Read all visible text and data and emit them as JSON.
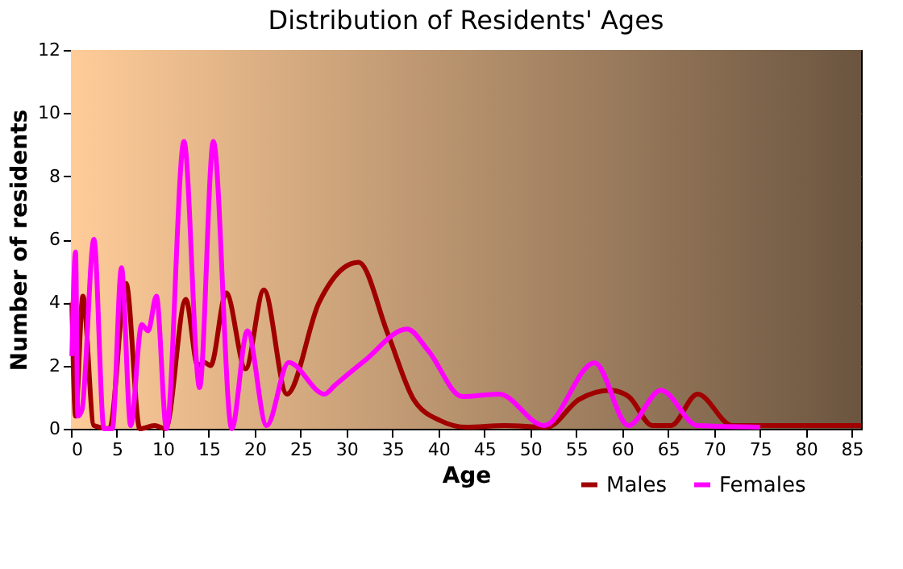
{
  "chart_data": {
    "type": "line",
    "title": "Distribution of Residents' Ages",
    "xlabel": "Age",
    "ylabel": "Number of residents",
    "xlim": [
      0,
      86
    ],
    "xticks": [
      0,
      5,
      10,
      15,
      20,
      25,
      30,
      35,
      40,
      45,
      50,
      55,
      60,
      65,
      70,
      75,
      80,
      85
    ],
    "ylim": [
      0,
      12
    ],
    "yticks": [
      0,
      2,
      4,
      6,
      8,
      10,
      12
    ],
    "grid": true,
    "legend": "bottom right",
    "marker": "none",
    "line_style": "solid",
    "series": [
      {
        "name": "Males",
        "color": "#a00000",
        "x": [
          0.1,
          0.5,
          1.3,
          2.5,
          4.2,
          6,
          7.5,
          9.1,
          10.3,
          12.5,
          13.8,
          14.5,
          15.2,
          16.9,
          19,
          21,
          23.5,
          27,
          29.7,
          31.3,
          34.5,
          37.3,
          40.2,
          43.1,
          47.2,
          51.8,
          55.3,
          58.7,
          60.7,
          63.3,
          65.3,
          68.2,
          72,
          80,
          86
        ],
        "values": [
          4.0,
          0.4,
          4.2,
          0.1,
          0,
          4.6,
          0,
          0.1,
          0,
          4.1,
          2,
          2.1,
          2,
          4.3,
          1.9,
          4.4,
          1.1,
          4.0,
          5.1,
          5.27,
          3.0,
          0.93,
          0.26,
          0.05,
          0.1,
          0.05,
          0.93,
          1.22,
          1.02,
          0.1,
          0.1,
          1.1,
          0.1,
          0.1,
          0.1
        ]
      },
      {
        "name": "Females",
        "color": "#ff00ff",
        "x": [
          0.1,
          0.5,
          0.75,
          1.2,
          2.5,
          3.6,
          4.5,
          5.5,
          6.5,
          7.7,
          8.4,
          9.3,
          10.4,
          12.3,
          14,
          15.5,
          17.5,
          19.2,
          21.3,
          23.7,
          27.6,
          28.7,
          31.9,
          36.6,
          38.9,
          42.6,
          46.6,
          51.5,
          57,
          60.7,
          64.2,
          68.2,
          75
        ],
        "values": [
          2.3,
          5.6,
          0.4,
          0.6,
          6.0,
          0,
          0,
          5.1,
          0.1,
          3.3,
          3.1,
          4.2,
          0,
          9.1,
          1.3,
          9.1,
          0,
          3.1,
          0.1,
          2.1,
          1.1,
          1.37,
          2.14,
          3.16,
          2.47,
          1.02,
          1.1,
          0.1,
          2.09,
          0.1,
          1.22,
          0.1,
          0.05
        ]
      }
    ]
  }
}
